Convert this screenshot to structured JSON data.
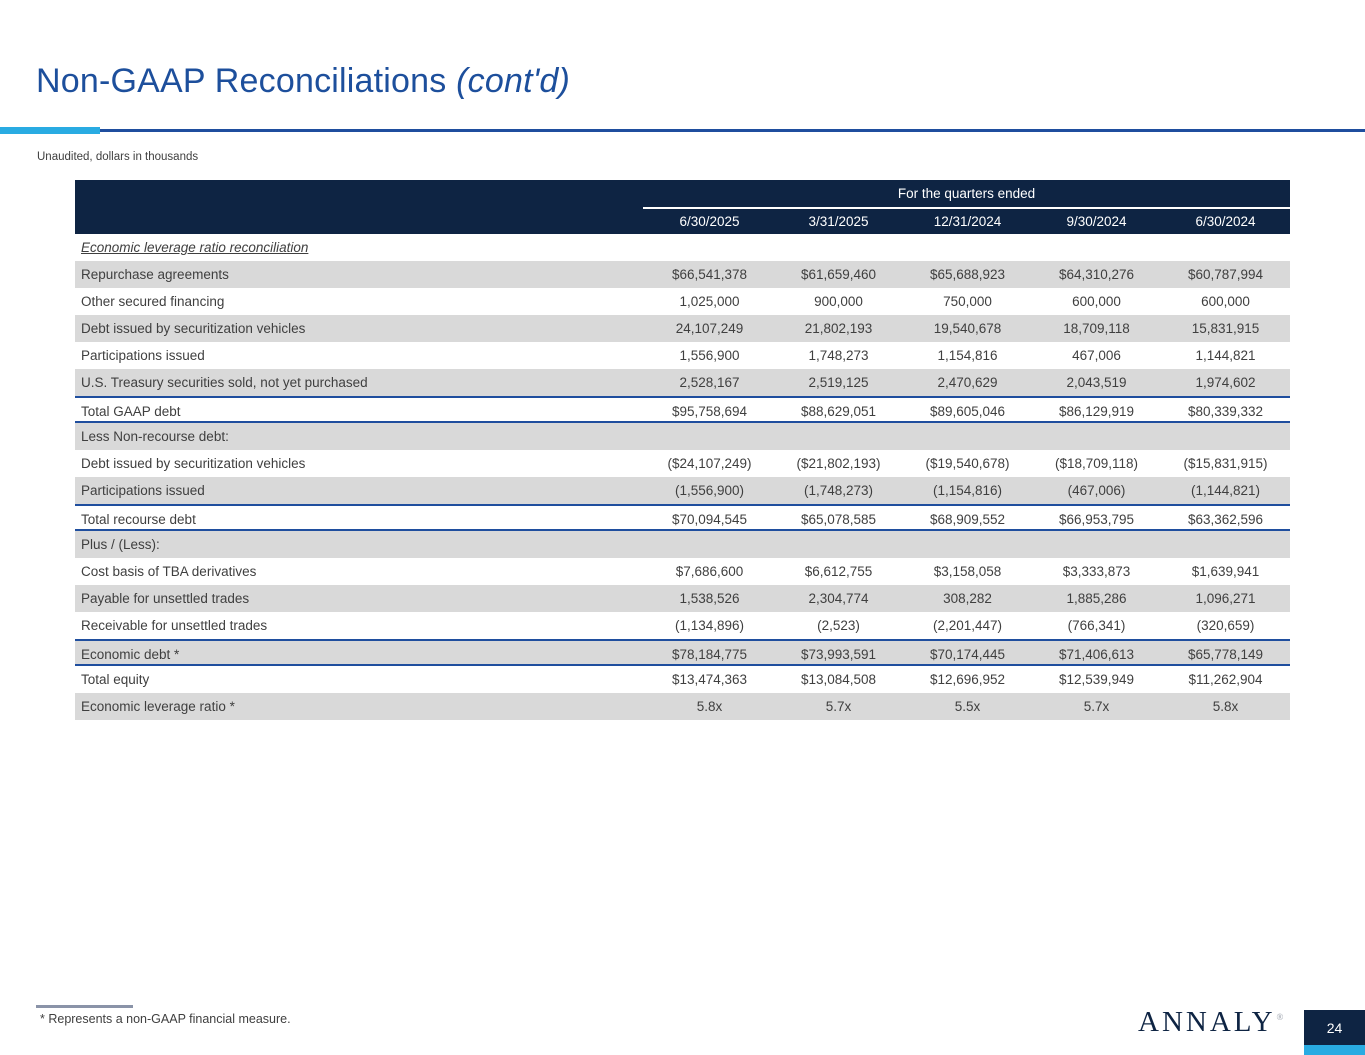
{
  "title": {
    "main": "Non-GAAP Reconciliations",
    "cont": " (cont'd)"
  },
  "subtitle": "Unaudited, dollars in thousands",
  "table": {
    "header_group_label": "For the quarters ended",
    "columns": [
      "6/30/2025",
      "3/31/2025",
      "12/31/2024",
      "9/30/2024",
      "6/30/2024"
    ],
    "rows": [
      {
        "label": "Economic leverage ratio reconciliation",
        "values": [
          "",
          "",
          "",
          "",
          ""
        ],
        "shade": false,
        "italic_underline": true
      },
      {
        "label": "Repurchase agreements",
        "values": [
          "$66,541,378",
          "$61,659,460",
          "$65,688,923",
          "$64,310,276",
          "$60,787,994"
        ],
        "shade": true
      },
      {
        "label": "Other secured financing",
        "values": [
          "1,025,000",
          "900,000",
          "750,000",
          "600,000",
          "600,000"
        ],
        "shade": false
      },
      {
        "label": "Debt issued by securitization vehicles",
        "values": [
          "24,107,249",
          "21,802,193",
          "19,540,678",
          "18,709,118",
          "15,831,915"
        ],
        "shade": true
      },
      {
        "label": "Participations issued",
        "values": [
          "1,556,900",
          "1,748,273",
          "1,154,816",
          "467,006",
          "1,144,821"
        ],
        "shade": false
      },
      {
        "label": "U.S. Treasury securities sold, not yet purchased",
        "values": [
          "2,528,167",
          "2,519,125",
          "2,470,629",
          "2,043,519",
          "1,974,602"
        ],
        "shade": true
      },
      {
        "label": "Total GAAP debt",
        "values": [
          "$95,758,694",
          "$88,629,051",
          "$89,605,046",
          "$86,129,919",
          "$80,339,332"
        ],
        "shade": false,
        "border_top": true,
        "border_bottom": true
      },
      {
        "label": "Less Non-recourse debt:",
        "values": [
          "",
          "",
          "",
          "",
          ""
        ],
        "shade": true
      },
      {
        "label": "Debt issued by securitization vehicles",
        "values": [
          "($24,107,249)",
          "($21,802,193)",
          "($19,540,678)",
          "($18,709,118)",
          "($15,831,915)"
        ],
        "shade": false
      },
      {
        "label": "Participations issued",
        "values": [
          "(1,556,900)",
          "(1,748,273)",
          "(1,154,816)",
          "(467,006)",
          "(1,144,821)"
        ],
        "shade": true
      },
      {
        "label": "Total recourse debt",
        "values": [
          "$70,094,545",
          "$65,078,585",
          "$68,909,552",
          "$66,953,795",
          "$63,362,596"
        ],
        "shade": false,
        "border_top": true,
        "border_bottom": true
      },
      {
        "label": "Plus / (Less):",
        "values": [
          "",
          "",
          "",
          "",
          ""
        ],
        "shade": true
      },
      {
        "label": "Cost basis of TBA derivatives",
        "values": [
          "$7,686,600",
          "$6,612,755",
          "$3,158,058",
          "$3,333,873",
          "$1,639,941"
        ],
        "shade": false
      },
      {
        "label": "Payable for unsettled trades",
        "values": [
          "1,538,526",
          "2,304,774",
          "308,282",
          "1,885,286",
          "1,096,271"
        ],
        "shade": true
      },
      {
        "label": "Receivable for unsettled trades",
        "values": [
          "(1,134,896)",
          "(2,523)",
          "(2,201,447)",
          "(766,341)",
          "(320,659)"
        ],
        "shade": false
      },
      {
        "label": "Economic debt *",
        "values": [
          "$78,184,775",
          "$73,993,591",
          "$70,174,445",
          "$71,406,613",
          "$65,778,149"
        ],
        "shade": true,
        "border_top": true,
        "border_bottom": true
      },
      {
        "label": "Total equity",
        "values": [
          "$13,474,363",
          "$13,084,508",
          "$12,696,952",
          "$12,539,949",
          "$11,262,904"
        ],
        "shade": false
      },
      {
        "label": "Economic leverage ratio *",
        "values": [
          "5.8x",
          "5.7x",
          "5.5x",
          "5.7x",
          "5.8x"
        ],
        "shade": true
      }
    ]
  },
  "footnote": "* Represents a non-GAAP financial measure.",
  "logo": {
    "text": "ANNALY",
    "reg": "®"
  },
  "page_number": "24",
  "colors": {
    "header_navy": "#0e2443",
    "border_blue": "#1f4e9e",
    "title_blue": "#1d4f9c",
    "accent_cyan": "#29abe2",
    "row_gray": "#d9d9d9",
    "body_text": "#3f3f3f"
  }
}
